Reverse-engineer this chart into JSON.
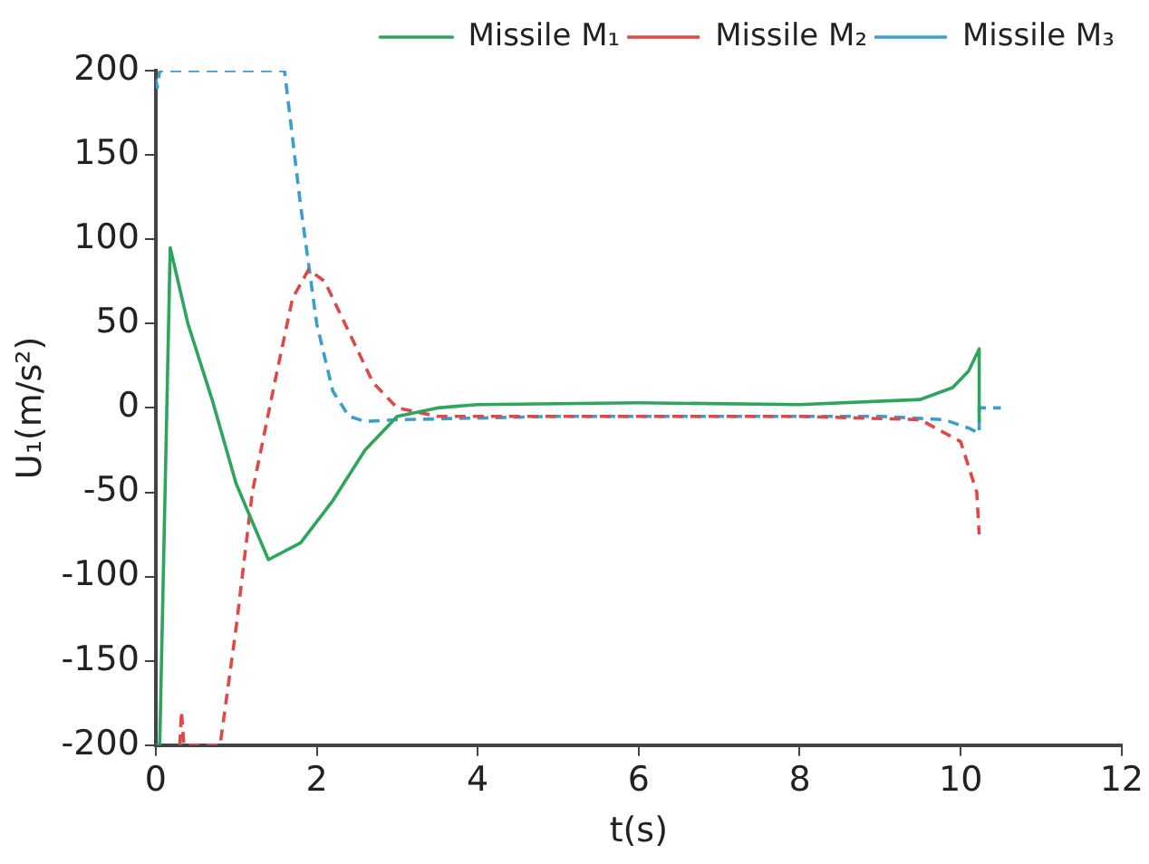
{
  "chart_data": {
    "type": "line",
    "xlabel": "t(s)",
    "ylabel": "U₁(m/s²)",
    "xlim": [
      0,
      12
    ],
    "xticks": [
      0,
      2,
      4,
      6,
      8,
      10,
      12
    ],
    "ylim": [
      -200,
      200
    ],
    "yticks": [
      -200,
      -150,
      -100,
      -50,
      0,
      50,
      100,
      150,
      200
    ],
    "grid": false,
    "legend": "top right",
    "marker": "none",
    "series": [
      {
        "name": "Missile M₁",
        "color": "#2ea55c",
        "line_style": "solid",
        "x": [
          0,
          0.05,
          0.18,
          0.4,
          0.7,
          1.0,
          1.4,
          1.8,
          2.2,
          2.6,
          3.0,
          3.5,
          4,
          6,
          8,
          9.5,
          9.9,
          10.1,
          10.23,
          10.23
        ],
        "values": [
          -200,
          -200,
          95,
          50,
          5,
          -45,
          -90,
          -80,
          -55,
          -25,
          -5,
          0,
          2,
          3,
          2,
          5,
          12,
          22,
          35,
          -8
        ]
      },
      {
        "name": "Missile M₂",
        "color": "#e04848",
        "line_style": "dashed",
        "x": [
          0.3,
          0.32,
          0.35,
          0.8,
          1.0,
          1.2,
          1.5,
          1.7,
          1.9,
          2.1,
          2.4,
          2.7,
          3.0,
          3.5,
          5,
          8,
          9.5,
          10,
          10.2,
          10.23
        ],
        "values": [
          -200,
          -180,
          -200,
          -200,
          -130,
          -50,
          20,
          65,
          82,
          75,
          45,
          15,
          0,
          -5,
          -5,
          -5,
          -7,
          -20,
          -50,
          -75
        ]
      },
      {
        "name": "Missile M₃",
        "color": "#3a9fd0",
        "line_style": "dashed",
        "x": [
          0,
          0.02,
          0.05,
          1.6,
          1.8,
          2.0,
          2.2,
          2.4,
          2.6,
          3,
          5,
          9,
          9.8,
          10.1,
          10.23,
          10.23,
          10.5
        ],
        "values": [
          195,
          190,
          200,
          200,
          120,
          50,
          10,
          -5,
          -8,
          -7,
          -5,
          -5,
          -7,
          -12,
          -15,
          0,
          0
        ]
      }
    ]
  }
}
